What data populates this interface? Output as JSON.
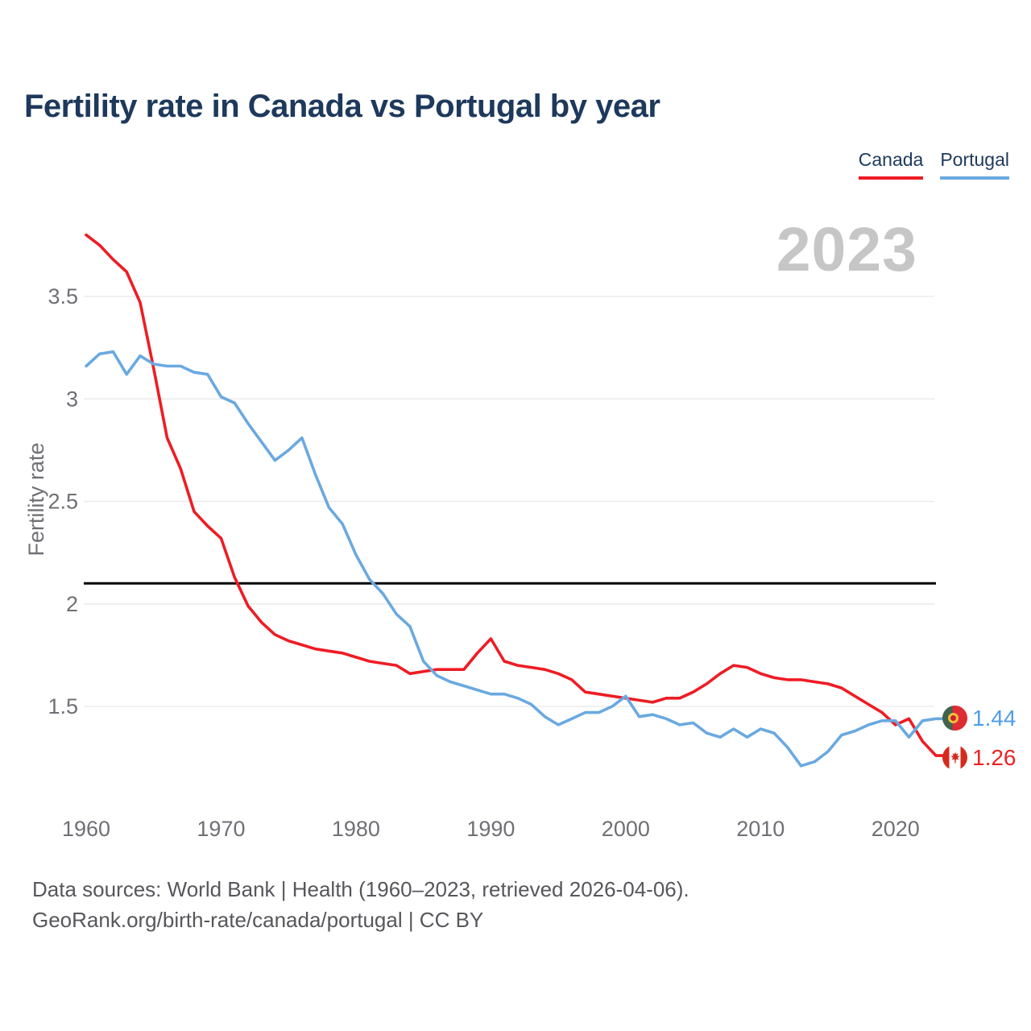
{
  "title": "Fertility rate in Canada vs Portugal by year",
  "legend": [
    {
      "label": "Canada",
      "color": "#ee1c24"
    },
    {
      "label": "Portugal",
      "color": "#6aa9e0"
    }
  ],
  "watermark": "2023",
  "end_labels": [
    {
      "series": "Portugal",
      "value": "1.44",
      "color": "#4f9de8",
      "flag_icon": "portugal-flag"
    },
    {
      "series": "Canada",
      "value": "1.26",
      "color": "#ee2125",
      "flag_icon": "canada-flag"
    }
  ],
  "footer": {
    "line1": "Data sources: World Bank | Health (1960–2023, retrieved 2026-04-06).",
    "line2": "GeoRank.org/birth-rate/canada/portugal | CC BY"
  },
  "chart_data": {
    "type": "line",
    "title": "Fertility rate in Canada vs Portugal by year",
    "xlabel": "",
    "ylabel": "Fertility rate",
    "grid": true,
    "legend_position": "top-right",
    "xlim": [
      1960,
      2023
    ],
    "ylim": [
      1.05,
      3.92
    ],
    "x_ticks": [
      1960,
      1970,
      1980,
      1990,
      2000,
      2010,
      2020
    ],
    "y_ticks": [
      1.5,
      2,
      2.5,
      3,
      3.5
    ],
    "reference_line": {
      "value": 2.1,
      "color": "#000000"
    },
    "x": [
      1960,
      1961,
      1962,
      1963,
      1964,
      1965,
      1966,
      1967,
      1968,
      1969,
      1970,
      1971,
      1972,
      1973,
      1974,
      1975,
      1976,
      1977,
      1978,
      1979,
      1980,
      1981,
      1982,
      1983,
      1984,
      1985,
      1986,
      1987,
      1988,
      1989,
      1990,
      1991,
      1992,
      1993,
      1994,
      1995,
      1996,
      1997,
      1998,
      1999,
      2000,
      2001,
      2002,
      2003,
      2004,
      2005,
      2006,
      2007,
      2008,
      2009,
      2010,
      2011,
      2012,
      2013,
      2014,
      2015,
      2016,
      2017,
      2018,
      2019,
      2020,
      2021,
      2022,
      2023
    ],
    "series": [
      {
        "name": "Canada",
        "color": "#ee1c24",
        "values": [
          3.8,
          3.75,
          3.68,
          3.62,
          3.47,
          3.15,
          2.81,
          2.66,
          2.45,
          2.38,
          2.32,
          2.13,
          1.99,
          1.91,
          1.85,
          1.82,
          1.8,
          1.78,
          1.77,
          1.76,
          1.74,
          1.72,
          1.71,
          1.7,
          1.66,
          1.67,
          1.68,
          1.68,
          1.68,
          1.76,
          1.83,
          1.72,
          1.7,
          1.69,
          1.68,
          1.66,
          1.63,
          1.57,
          1.56,
          1.55,
          1.54,
          1.53,
          1.52,
          1.54,
          1.54,
          1.57,
          1.61,
          1.66,
          1.7,
          1.69,
          1.66,
          1.64,
          1.63,
          1.63,
          1.62,
          1.61,
          1.59,
          1.55,
          1.51,
          1.47,
          1.41,
          1.44,
          1.33,
          1.26
        ]
      },
      {
        "name": "Portugal",
        "color": "#6aa9e0",
        "values": [
          3.16,
          3.22,
          3.23,
          3.12,
          3.21,
          3.17,
          3.16,
          3.16,
          3.13,
          3.12,
          3.01,
          2.98,
          2.88,
          2.79,
          2.7,
          2.75,
          2.81,
          2.63,
          2.47,
          2.39,
          2.24,
          2.12,
          2.05,
          1.95,
          1.89,
          1.72,
          1.65,
          1.62,
          1.6,
          1.58,
          1.56,
          1.56,
          1.54,
          1.51,
          1.45,
          1.41,
          1.44,
          1.47,
          1.47,
          1.5,
          1.55,
          1.45,
          1.46,
          1.44,
          1.41,
          1.42,
          1.37,
          1.35,
          1.39,
          1.35,
          1.39,
          1.37,
          1.3,
          1.21,
          1.23,
          1.28,
          1.36,
          1.38,
          1.41,
          1.43,
          1.43,
          1.35,
          1.43,
          1.44
        ]
      }
    ]
  }
}
